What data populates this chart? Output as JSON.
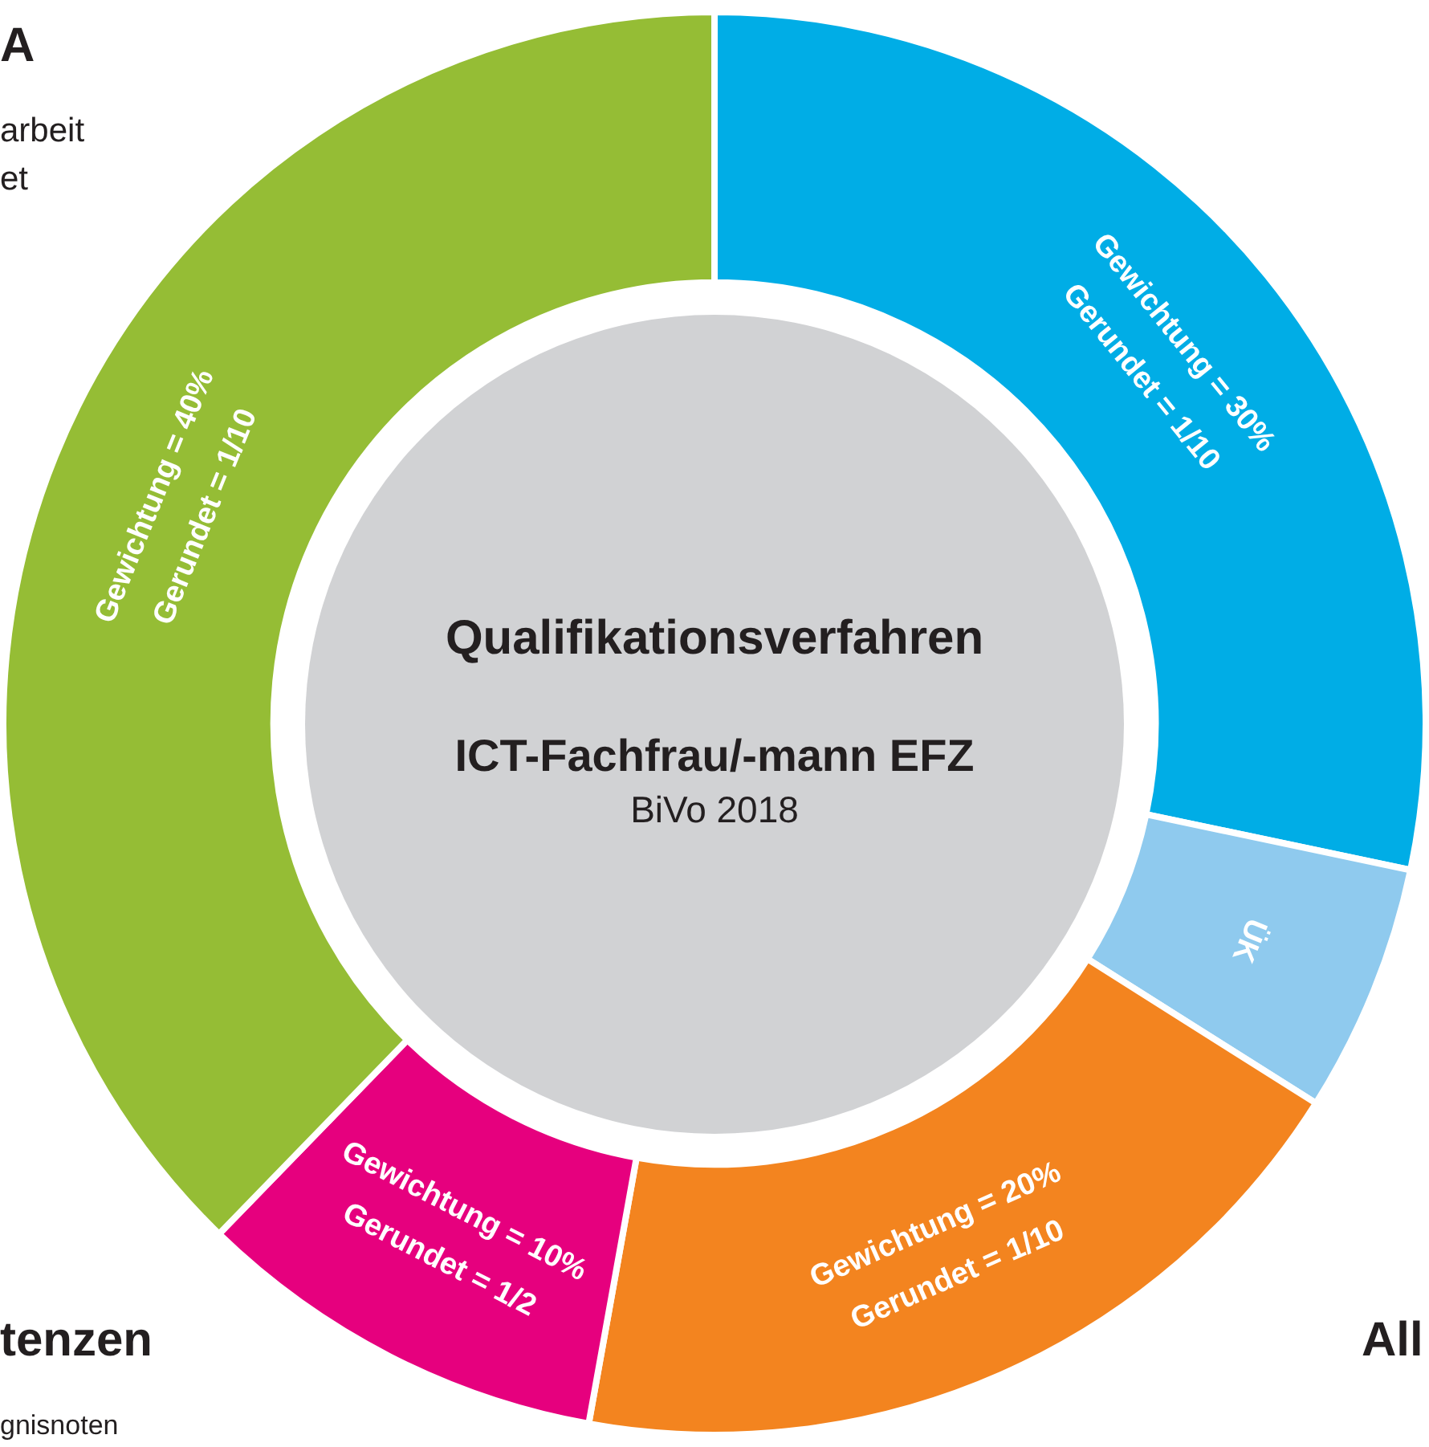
{
  "chart_data": {
    "type": "donut",
    "title": "Qualifikationsverfahren",
    "subtitle": "ICT-Fachfrau/-mann EFZ",
    "categories": [
      null,
      "ÜK",
      null,
      null,
      null
    ],
    "values": [
      30,
      6,
      20,
      10,
      40
    ],
    "colors": [
      "#00ade6",
      "#8fcaee",
      "#f3841f",
      "#e6007e",
      "#95bd35"
    ],
    "value_labels": [
      "Gewichtung = 30%\nGerundet = 1/10",
      null,
      "Gewichtung = 20%\nGerundet = 1/10",
      "Gewichtung = 10%\nGerundet = 1/2",
      "Gewichtung = 40%\nGerundet = 1/10"
    ],
    "annotations": [
      "BiVo 2018",
      "A",
      "arbeit",
      "et",
      "tenzen",
      "gnisnoten",
      "All"
    ],
    "legend": false
  }
}
